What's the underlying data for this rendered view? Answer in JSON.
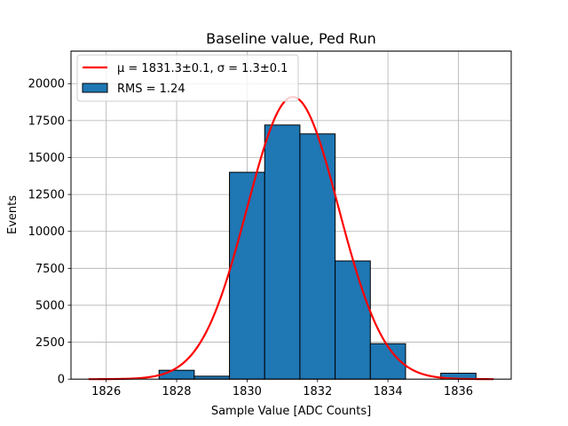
{
  "chart_data": {
    "type": "bar",
    "title": "Baseline value, Ped Run",
    "xlabel": "Sample Value [ADC Counts]",
    "ylabel": "Events",
    "xlim": [
      1825,
      1837.5
    ],
    "ylim": [
      0,
      22200
    ],
    "xticks": [
      1826,
      1828,
      1830,
      1832,
      1834,
      1836
    ],
    "yticks": [
      0,
      2500,
      5000,
      7500,
      10000,
      12500,
      15000,
      17500,
      20000
    ],
    "grid": true,
    "legend_position": "top-left",
    "histogram": {
      "name": "RMS = 1.24",
      "bin_edges": [
        1827.5,
        1828.5,
        1829.5,
        1830.5,
        1831.5,
        1832.5,
        1833.5,
        1834.5,
        1835.5,
        1836.5
      ],
      "counts": [
        600,
        200,
        14000,
        17200,
        16600,
        8000,
        2400,
        0,
        400
      ],
      "color": "#1f77b4",
      "edgecolor": "#000000"
    },
    "fit": {
      "name": "$\\mu = 1831.3 \\pm 0.1$, $\\sigma = 1.3 \\pm 0.1$",
      "label_display": "μ = 1831.3±0.1, σ = 1.3±0.1",
      "function": "gaussian",
      "mu": 1831.3,
      "sigma": 1.3,
      "amplitude": 19100,
      "x_range": [
        1825.5,
        1837.0
      ],
      "color": "#ff0000"
    }
  }
}
